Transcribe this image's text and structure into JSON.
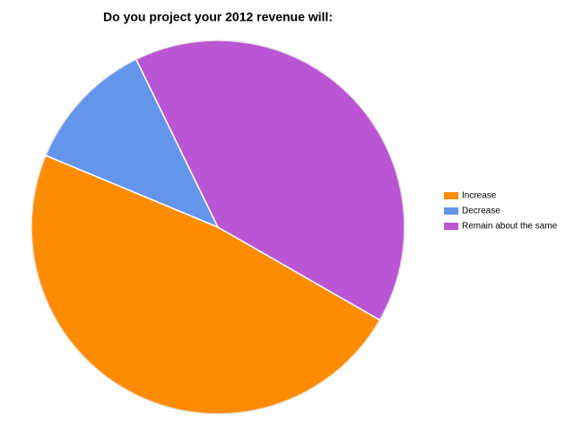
{
  "chart_data": {
    "type": "pie",
    "title": "Do you project your 2012 revenue will:",
    "categories": [
      "Increase",
      "Decrease",
      "Remain about the same"
    ],
    "values": [
      48,
      11.5,
      40.5
    ],
    "colors": [
      "#ff8c00",
      "#6495ed",
      "#ba55d3"
    ],
    "legend": "right"
  }
}
